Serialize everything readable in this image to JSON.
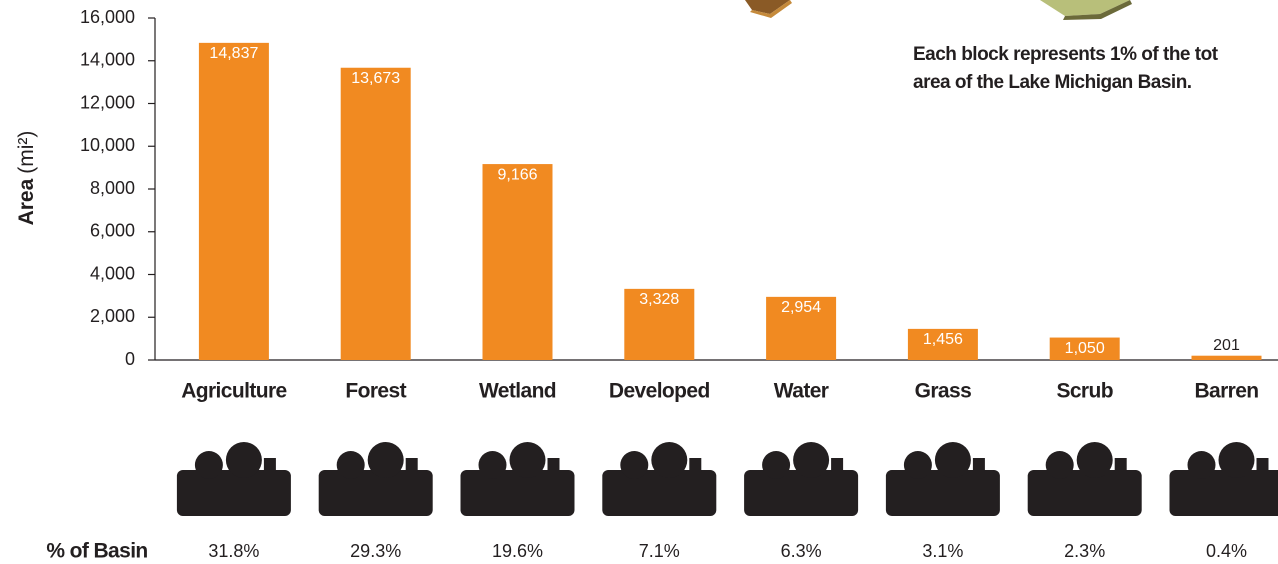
{
  "chart_data": {
    "type": "bar",
    "y_label": "Area",
    "y_unit": "(mi²)",
    "annotation": [
      "Each block represents 1% of the tot",
      "area of the Lake Michigan Basin."
    ],
    "categories": [
      "Agriculture",
      "Forest",
      "Wetland",
      "Developed",
      "Water",
      "Grass",
      "Scrub",
      "Barren"
    ],
    "values": [
      14837,
      13673,
      9166,
      3328,
      2954,
      1456,
      1050,
      201
    ],
    "value_labels": [
      "14,837",
      "13,673",
      "9,166",
      "3,328",
      "2,954",
      "1,456",
      "1,050",
      "201"
    ],
    "color": "#f18a21",
    "ylim": [
      0,
      16000
    ],
    "yticks": [
      0,
      {
        "value": 2000,
        "label": "2,000"
      },
      {
        "value": 4000,
        "label": "4,000"
      },
      {
        "value": 6000,
        "label": "6,000"
      },
      {
        "value": 8000,
        "label": "8,000"
      },
      {
        "value": 10000,
        "label": "10,000"
      },
      {
        "value": 12000,
        "label": "12,000"
      },
      {
        "value": 14000,
        "label": "14,000"
      },
      {
        "value": 16000,
        "label": "16,000"
      }
    ],
    "grid": false,
    "percent_title": "% of Basin",
    "percent_labels": [
      "31.8%",
      "29.3%",
      "19.6%",
      "7.1%",
      "6.3%",
      "3.1%",
      "2.3%",
      "0.4%"
    ]
  }
}
